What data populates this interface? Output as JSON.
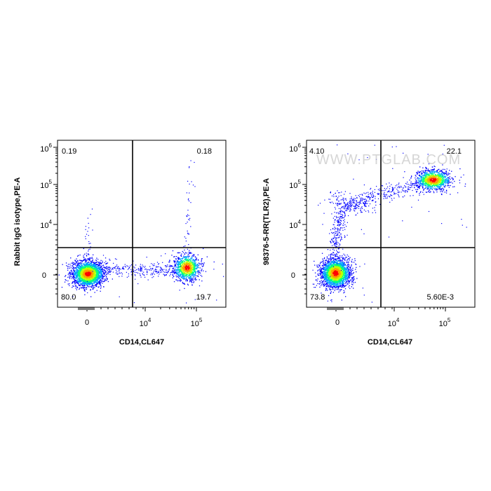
{
  "watermark": "WWW.PTGLAB.COM",
  "chart_data": [
    {
      "type": "scatter",
      "subtype": "flow-cytometry-density-plot",
      "xlabel": "CD14,CL647",
      "ylabel": "Rabbit IgG isotype,PE-A",
      "x_ticks": [
        "0",
        "10",
        "10"
      ],
      "x_tick_exponents": [
        "",
        "4",
        "5"
      ],
      "y_ticks": [
        "0",
        "10",
        "10",
        "10"
      ],
      "y_tick_exponents": [
        "",
        "4",
        "5",
        "6"
      ],
      "x_gate": "5000",
      "y_gate": "2000",
      "quadrants": {
        "top_left": "0.19",
        "top_right": "0.18",
        "bottom_left": "80.0",
        "bottom_right": "19.7"
      },
      "populations": [
        {
          "x": 0,
          "y": 0,
          "share": 0.8
        },
        {
          "x": 90000,
          "y": 0,
          "share": 0.197
        }
      ]
    },
    {
      "type": "scatter",
      "subtype": "flow-cytometry-density-plot",
      "xlabel": "CD14,CL647",
      "ylabel": "98376-5-RR(TLR2),PE-A",
      "x_ticks": [
        "0",
        "10",
        "10"
      ],
      "x_tick_exponents": [
        "",
        "4",
        "5"
      ],
      "y_ticks": [
        "0",
        "10",
        "10",
        "10"
      ],
      "y_tick_exponents": [
        "",
        "4",
        "5",
        "6"
      ],
      "x_gate": "5000",
      "y_gate": "2000",
      "quadrants": {
        "top_left": "4.10",
        "top_right": "22.1",
        "bottom_left": "73.8",
        "bottom_right": "5.60E-3"
      },
      "populations": [
        {
          "x": 0,
          "y": 0,
          "share": 0.738
        },
        {
          "x": 60000,
          "y": 150000,
          "share": 0.221
        },
        {
          "x": 0,
          "y": 60000,
          "share": 0.041
        }
      ]
    }
  ],
  "colors": {
    "density": [
      "#0000ff",
      "#00a0ff",
      "#00ff80",
      "#c0ff00",
      "#ffa000",
      "#ff0000"
    ],
    "axis": "#000000",
    "gate": "#000000",
    "watermark": "#c8c8c8"
  }
}
